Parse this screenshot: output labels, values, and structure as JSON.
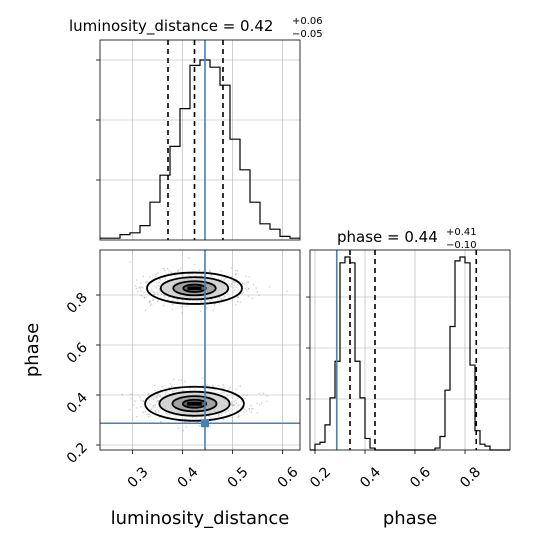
{
  "chart_data": [
    {
      "type": "histogram",
      "panel": "luminosity_distance marginal",
      "title": {
        "param": "luminosity_distance",
        "value": "0.42",
        "plus": "+0.06",
        "minus": "−0.05"
      },
      "xlim": [
        0.235,
        0.635
      ],
      "bins_x": [
        0.235,
        0.255,
        0.275,
        0.295,
        0.315,
        0.335,
        0.355,
        0.375,
        0.395,
        0.415,
        0.435,
        0.455,
        0.475,
        0.495,
        0.515,
        0.535,
        0.555,
        0.575,
        0.595,
        0.615,
        0.635
      ],
      "counts": [
        0.01,
        0.01,
        0.03,
        0.04,
        0.08,
        0.21,
        0.36,
        0.52,
        0.73,
        0.97,
        1.0,
        0.96,
        0.86,
        0.56,
        0.39,
        0.21,
        0.09,
        0.06,
        0.02,
        0.01
      ],
      "quantiles": [
        0.371,
        0.424,
        0.481
      ],
      "truth": 0.445,
      "grid": true
    },
    {
      "type": "histogram",
      "panel": "phase marginal",
      "title": {
        "param": "phase",
        "value": "0.44",
        "plus": "+0.41",
        "minus": "−0.10"
      },
      "xlim": [
        0.18,
        0.98
      ],
      "bins_x": [
        0.18,
        0.2,
        0.22,
        0.24,
        0.26,
        0.28,
        0.3,
        0.32,
        0.34,
        0.36,
        0.38,
        0.4,
        0.42,
        0.44,
        0.46,
        0.48,
        0.5,
        0.52,
        0.54,
        0.56,
        0.58,
        0.6,
        0.62,
        0.64,
        0.66,
        0.68,
        0.7,
        0.72,
        0.74,
        0.76,
        0.78,
        0.8,
        0.82,
        0.84,
        0.86,
        0.88,
        0.9,
        0.92,
        0.94,
        0.96,
        0.98
      ],
      "counts": [
        0,
        0.03,
        0.04,
        0.13,
        0.27,
        0.46,
        0.97,
        1.0,
        0.97,
        0.46,
        0.27,
        0.06,
        0.01,
        0,
        0,
        0,
        0,
        0,
        0,
        0,
        0,
        0,
        0,
        0,
        0,
        0.01,
        0.07,
        0.31,
        0.64,
        0.98,
        1.0,
        0.97,
        0.44,
        0.1,
        0.03,
        0.02,
        0,
        0,
        0,
        0
      ],
      "quantiles": [
        0.34,
        0.44,
        0.845
      ],
      "truth": 0.287,
      "grid": true
    },
    {
      "type": "contour",
      "panel": "phase vs luminosity_distance",
      "xlim": [
        0.235,
        0.635
      ],
      "ylim": [
        0.18,
        0.98
      ],
      "xlabel": "luminosity_distance",
      "ylabel": "phase",
      "xticks": [
        "0.3",
        "0.4",
        "0.5",
        "0.6"
      ],
      "xtick_values": [
        0.3,
        0.4,
        0.5,
        0.6
      ],
      "yticks": [
        "0.2",
        "0.4",
        "0.6",
        "0.8"
      ],
      "ytick_values": [
        0.2,
        0.4,
        0.6,
        0.8
      ],
      "blobs": [
        {
          "cx": 0.424,
          "cy": 0.827,
          "sx": 0.05,
          "sy": 0.06,
          "levels": [
            1.05,
            1.4,
            1.9,
            2.8
          ]
        },
        {
          "cx": 0.424,
          "cy": 0.365,
          "sx": 0.052,
          "sy": 0.065,
          "levels": [
            1.05,
            1.4,
            1.9,
            2.8
          ]
        }
      ],
      "truth": {
        "x": 0.445,
        "y": 0.287
      },
      "grid": true
    }
  ],
  "x_tick_labels_phase": [
    "0.2",
    "0.4",
    "0.6",
    "0.8"
  ],
  "x_tick_values_phase": [
    0.2,
    0.4,
    0.6,
    0.8
  ],
  "labels": {
    "xlabel_left": "luminosity_distance",
    "xlabel_right": "phase",
    "ylabel": "phase"
  },
  "colors": {
    "truth": "#4682b4",
    "hist": "#000000",
    "grid": "#b0b0b0"
  }
}
